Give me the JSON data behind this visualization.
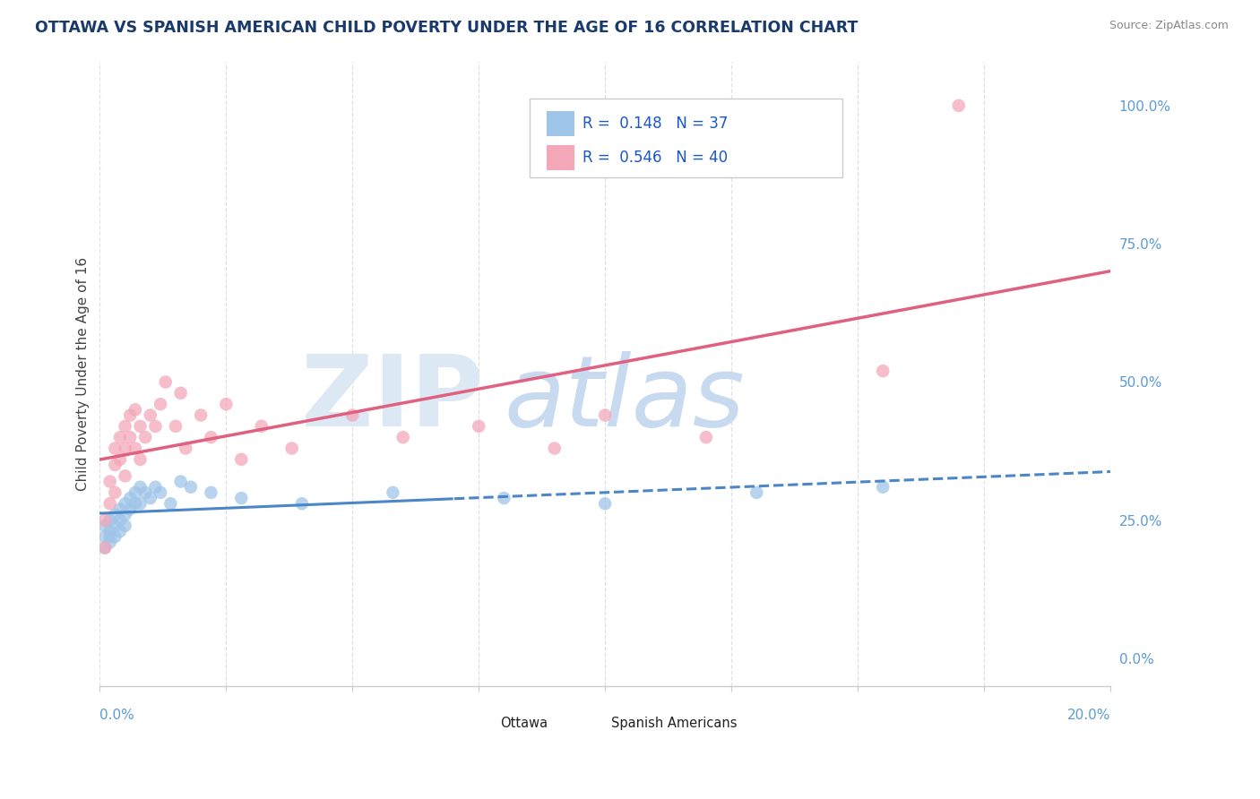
{
  "title": "OTTAWA VS SPANISH AMERICAN CHILD POVERTY UNDER THE AGE OF 16 CORRELATION CHART",
  "source": "Source: ZipAtlas.com",
  "ylabel": "Child Poverty Under the Age of 16",
  "right_yticklabels": [
    "0.0%",
    "25.0%",
    "50.0%",
    "75.0%",
    "100.0%"
  ],
  "right_yticks": [
    0.0,
    0.25,
    0.5,
    0.75,
    1.0
  ],
  "xlim": [
    0.0,
    0.2
  ],
  "ylim": [
    -0.05,
    1.08
  ],
  "color_blue": "#9fc5e8",
  "color_pink": "#f4a7b9",
  "color_blue_line": "#4a86c8",
  "color_pink_line": "#e06080",
  "title_color": "#1a3a6b",
  "bg_color": "#ffffff",
  "grid_color": "#dddddd",
  "watermark_zip_color": "#dde8f5",
  "watermark_atlas_color": "#c8daf0",
  "ottawa_x": [
    0.001,
    0.001,
    0.001,
    0.002,
    0.002,
    0.002,
    0.002,
    0.003,
    0.003,
    0.003,
    0.004,
    0.004,
    0.004,
    0.005,
    0.005,
    0.005,
    0.006,
    0.006,
    0.007,
    0.007,
    0.008,
    0.008,
    0.009,
    0.01,
    0.011,
    0.012,
    0.014,
    0.016,
    0.018,
    0.022,
    0.028,
    0.04,
    0.058,
    0.08,
    0.1,
    0.13,
    0.155
  ],
  "ottawa_y": [
    0.22,
    0.24,
    0.2,
    0.22,
    0.25,
    0.21,
    0.23,
    0.24,
    0.26,
    0.22,
    0.25,
    0.27,
    0.23,
    0.28,
    0.26,
    0.24,
    0.29,
    0.27,
    0.3,
    0.28,
    0.31,
    0.28,
    0.3,
    0.29,
    0.31,
    0.3,
    0.28,
    0.32,
    0.31,
    0.3,
    0.29,
    0.28,
    0.3,
    0.29,
    0.28,
    0.3,
    0.31
  ],
  "spanish_x": [
    0.001,
    0.001,
    0.002,
    0.002,
    0.003,
    0.003,
    0.003,
    0.004,
    0.004,
    0.005,
    0.005,
    0.005,
    0.006,
    0.006,
    0.007,
    0.007,
    0.008,
    0.008,
    0.009,
    0.01,
    0.011,
    0.012,
    0.013,
    0.015,
    0.016,
    0.017,
    0.02,
    0.022,
    0.025,
    0.028,
    0.032,
    0.038,
    0.05,
    0.06,
    0.075,
    0.09,
    0.1,
    0.12,
    0.155,
    0.17
  ],
  "spanish_y": [
    0.2,
    0.25,
    0.28,
    0.32,
    0.35,
    0.38,
    0.3,
    0.4,
    0.36,
    0.42,
    0.38,
    0.33,
    0.44,
    0.4,
    0.38,
    0.45,
    0.42,
    0.36,
    0.4,
    0.44,
    0.42,
    0.46,
    0.5,
    0.42,
    0.48,
    0.38,
    0.44,
    0.4,
    0.46,
    0.36,
    0.42,
    0.38,
    0.44,
    0.4,
    0.42,
    0.38,
    0.44,
    0.4,
    0.52,
    1.0
  ],
  "legend_text1": "R =  0.148   N = 37",
  "legend_text2": "R =  0.546   N = 40",
  "legend_label1": "Ottawa",
  "legend_label2": "Spanish Americans"
}
